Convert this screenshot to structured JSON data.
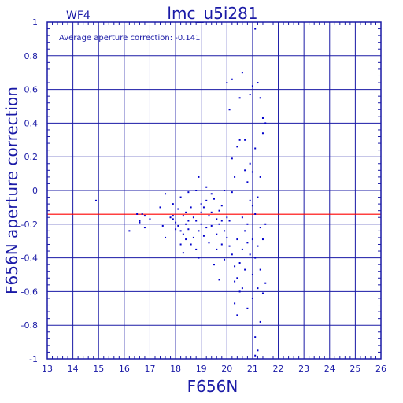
{
  "chart_data": {
    "type": "scatter",
    "title": "lmc_u5i281",
    "subtitle": "WF4",
    "annotation": "Average aperture correction: -0.141",
    "xlabel": "F656N",
    "ylabel": "F656N aperture correction",
    "xlim": [
      13,
      26
    ],
    "ylim": [
      -1,
      1
    ],
    "x_ticks": [
      "13",
      "14",
      "15",
      "16",
      "17",
      "18",
      "19",
      "20",
      "21",
      "22",
      "23",
      "24",
      "25",
      "26"
    ],
    "y_ticks": [
      "-1",
      "-0.8",
      "-0.6",
      "-0.4",
      "-0.2",
      "0",
      "0.2",
      "0.4",
      "0.6",
      "0.8",
      "1"
    ],
    "grid": true,
    "reference_line": {
      "y": -0.141,
      "color": "#ff0000"
    },
    "colors": {
      "frame": "#1a1aa6",
      "points": "#0000cc",
      "reference": "#ff0000"
    },
    "points": [
      [
        14.9,
        -0.06
      ],
      [
        16.2,
        -0.24
      ],
      [
        16.5,
        -0.14
      ],
      [
        16.6,
        -0.18
      ],
      [
        16.6,
        -0.19
      ],
      [
        16.7,
        -0.14
      ],
      [
        16.8,
        -0.22
      ],
      [
        16.8,
        -0.15
      ],
      [
        17.0,
        -0.17
      ],
      [
        17.4,
        -0.1
      ],
      [
        17.5,
        -0.21
      ],
      [
        17.6,
        -0.02
      ],
      [
        17.6,
        -0.28
      ],
      [
        17.8,
        -0.16
      ],
      [
        17.9,
        -0.17
      ],
      [
        17.9,
        -0.08
      ],
      [
        17.9,
        -0.15
      ],
      [
        18.0,
        -0.19
      ],
      [
        18.0,
        -0.23
      ],
      [
        18.1,
        -0.11
      ],
      [
        18.1,
        -0.21
      ],
      [
        18.2,
        -0.04
      ],
      [
        18.2,
        -0.24
      ],
      [
        18.2,
        -0.32
      ],
      [
        18.3,
        -0.15
      ],
      [
        18.3,
        -0.37
      ],
      [
        18.3,
        -0.26
      ],
      [
        18.4,
        -0.13
      ],
      [
        18.4,
        -0.2
      ],
      [
        18.4,
        -0.29
      ],
      [
        18.5,
        -0.01
      ],
      [
        18.5,
        -0.18
      ],
      [
        18.5,
        -0.23
      ],
      [
        18.6,
        -0.1
      ],
      [
        18.6,
        -0.32
      ],
      [
        18.7,
        -0.28
      ],
      [
        18.7,
        -0.16
      ],
      [
        18.8,
        0.0
      ],
      [
        18.8,
        -0.35
      ],
      [
        18.8,
        -0.18
      ],
      [
        18.9,
        0.08
      ],
      [
        18.9,
        -0.24
      ],
      [
        18.9,
        -0.4
      ],
      [
        19.0,
        -0.08
      ],
      [
        19.0,
        -0.2
      ],
      [
        19.0,
        -0.13
      ],
      [
        19.1,
        -0.27
      ],
      [
        19.1,
        -0.1
      ],
      [
        19.2,
        -0.22
      ],
      [
        19.2,
        0.02
      ],
      [
        19.2,
        -0.06
      ],
      [
        19.3,
        -0.15
      ],
      [
        19.3,
        -0.31
      ],
      [
        19.4,
        -0.13
      ],
      [
        19.4,
        -0.02
      ],
      [
        19.4,
        -0.21
      ],
      [
        19.5,
        -0.44
      ],
      [
        19.5,
        -0.05
      ],
      [
        19.6,
        -0.17
      ],
      [
        19.6,
        -0.26
      ],
      [
        19.6,
        -0.35
      ],
      [
        19.7,
        -0.12
      ],
      [
        19.7,
        -0.2
      ],
      [
        19.7,
        -0.53
      ],
      [
        19.8,
        -0.09
      ],
      [
        19.8,
        -0.32
      ],
      [
        19.8,
        -0.18
      ],
      [
        19.9,
        0.0
      ],
      [
        19.9,
        -0.24
      ],
      [
        19.9,
        -0.41
      ],
      [
        20.0,
        -0.16
      ],
      [
        20.0,
        -0.28
      ],
      [
        20.0,
        0.64
      ],
      [
        20.1,
        -0.33
      ],
      [
        20.1,
        0.48
      ],
      [
        20.1,
        -0.18
      ],
      [
        20.2,
        -0.01
      ],
      [
        20.2,
        0.19
      ],
      [
        20.2,
        -0.38
      ],
      [
        20.2,
        0.66
      ],
      [
        20.3,
        -0.45
      ],
      [
        20.3,
        -0.54
      ],
      [
        20.3,
        -0.67
      ],
      [
        20.3,
        0.08
      ],
      [
        20.4,
        -0.29
      ],
      [
        20.4,
        -0.52
      ],
      [
        20.4,
        -0.74
      ],
      [
        20.4,
        0.26
      ],
      [
        20.5,
        0.3
      ],
      [
        20.5,
        -0.43
      ],
      [
        20.5,
        -0.6
      ],
      [
        20.5,
        0.55
      ],
      [
        20.6,
        -0.16
      ],
      [
        20.6,
        -0.35
      ],
      [
        20.6,
        0.7
      ],
      [
        20.6,
        -0.58
      ],
      [
        20.7,
        0.12
      ],
      [
        20.7,
        -0.24
      ],
      [
        20.7,
        0.3
      ],
      [
        20.7,
        -0.47
      ],
      [
        20.8,
        0.05
      ],
      [
        20.8,
        -0.2
      ],
      [
        20.8,
        -0.31
      ],
      [
        20.8,
        -0.7
      ],
      [
        20.9,
        0.16
      ],
      [
        20.9,
        -0.06
      ],
      [
        20.9,
        -0.38
      ],
      [
        20.9,
        0.57
      ],
      [
        21.0,
        -0.09
      ],
      [
        21.0,
        -0.29
      ],
      [
        21.0,
        -0.5
      ],
      [
        21.0,
        -0.64
      ],
      [
        21.0,
        0.11
      ],
      [
        21.1,
        0.25
      ],
      [
        21.1,
        -0.14
      ],
      [
        21.1,
        -0.4
      ],
      [
        21.1,
        -0.87
      ],
      [
        21.1,
        0.96
      ],
      [
        21.2,
        -0.04
      ],
      [
        21.2,
        -0.33
      ],
      [
        21.2,
        -0.58
      ],
      [
        21.2,
        0.64
      ],
      [
        21.3,
        0.55
      ],
      [
        21.3,
        -0.22
      ],
      [
        21.3,
        -0.47
      ],
      [
        21.3,
        -0.78
      ],
      [
        21.3,
        0.08
      ],
      [
        21.4,
        0.34
      ],
      [
        21.4,
        -0.29
      ],
      [
        21.4,
        -0.61
      ],
      [
        21.4,
        0.43
      ],
      [
        21.5,
        0.4
      ],
      [
        21.5,
        -0.55
      ],
      [
        21.5,
        -0.2
      ],
      [
        21.1,
        -0.98
      ],
      [
        21.2,
        -0.95
      ],
      [
        21.0,
        0.62
      ]
    ]
  }
}
